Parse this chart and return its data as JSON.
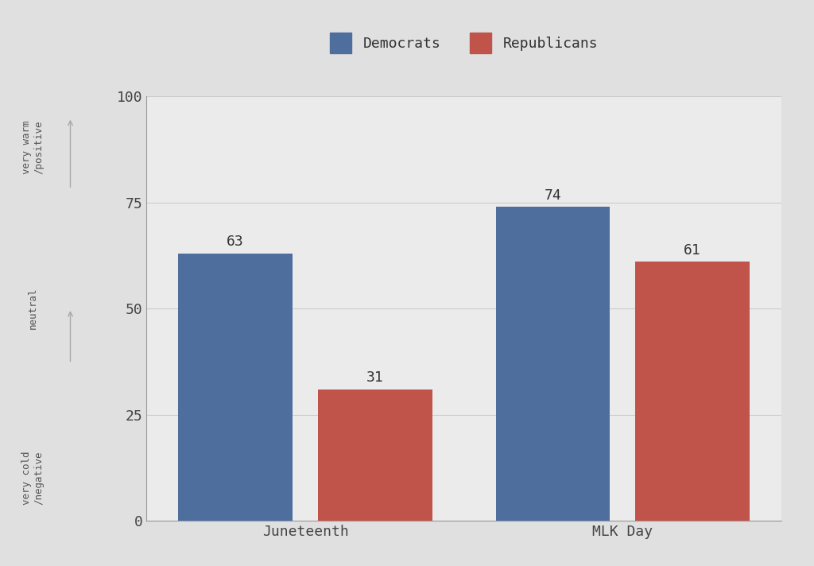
{
  "categories": [
    "Juneteenth",
    "MLK Day"
  ],
  "democrats": [
    63,
    74
  ],
  "republicans": [
    31,
    61
  ],
  "democrat_color": "#4e6f9e",
  "republican_color": "#c0534a",
  "background_color": "#e0e0e0",
  "plot_background_color": "#ebebeb",
  "ylim": [
    0,
    100
  ],
  "yticks": [
    0,
    25,
    50,
    75,
    100
  ],
  "bar_width": 0.18,
  "font_family": "monospace",
  "tick_fontsize": 13,
  "bar_label_fontsize": 13,
  "annot_fontsize": 9
}
